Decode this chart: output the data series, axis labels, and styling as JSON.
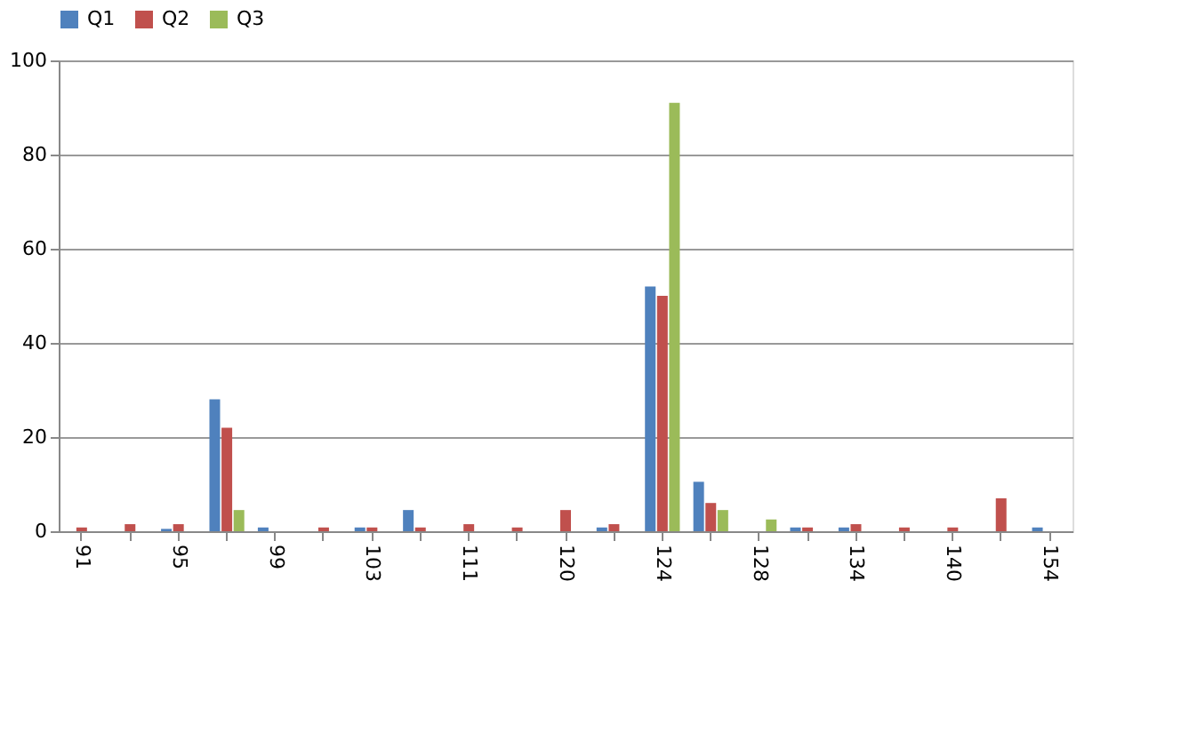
{
  "chart_data": {
    "type": "bar",
    "categories": [
      "91",
      null,
      "95",
      null,
      "99",
      null,
      "103",
      null,
      "111",
      null,
      "120",
      null,
      "124",
      null,
      "128",
      null,
      "134",
      null,
      "140",
      null,
      "154"
    ],
    "series": [
      {
        "name": "Q1",
        "color": "#4f81bd",
        "values": [
          0,
          0,
          0.5,
          28,
          0.8,
          0,
          0.8,
          4.5,
          0,
          0,
          0,
          0.8,
          52,
          10.5,
          0,
          0.8,
          0.8,
          0,
          0,
          0,
          0.8
        ]
      },
      {
        "name": "Q2",
        "color": "#c0504d",
        "values": [
          0.8,
          1.5,
          1.5,
          22,
          0,
          0.8,
          0.8,
          0.8,
          1.5,
          0.8,
          4.5,
          1.5,
          50,
          6,
          0,
          0.8,
          1.5,
          0.8,
          0.8,
          7,
          0
        ]
      },
      {
        "name": "Q3",
        "color": "#9bbb59",
        "values": [
          0,
          0,
          0,
          4.5,
          0,
          0,
          0,
          0,
          0,
          0,
          0,
          0,
          91,
          4.5,
          2.5,
          0,
          0,
          0,
          0,
          0,
          0
        ]
      }
    ],
    "ylim": [
      0,
      100
    ],
    "yticks": [
      0,
      20,
      40,
      60,
      80,
      100
    ],
    "grid": "y",
    "legend": "top"
  }
}
